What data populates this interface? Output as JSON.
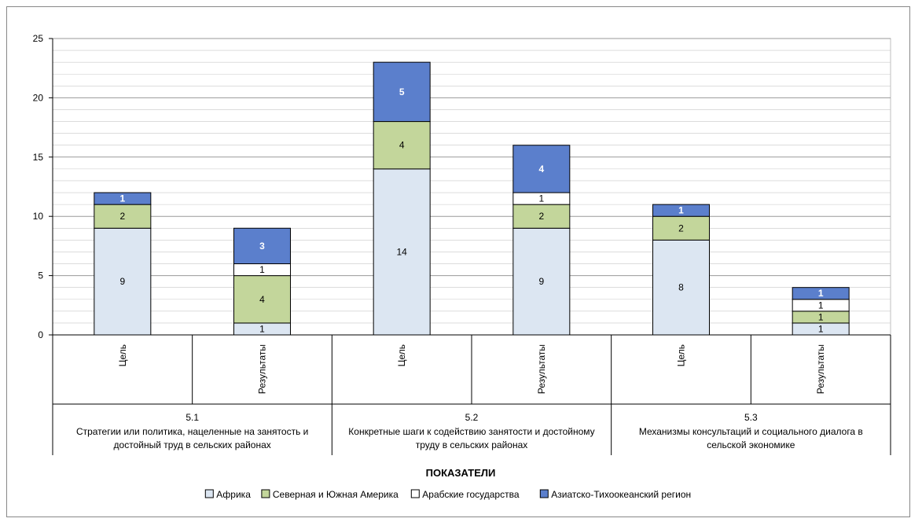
{
  "chart_data": {
    "type": "bar",
    "stacked": true,
    "xlabel": "ПОКАЗАТЕЛИ",
    "ylim": [
      0,
      25
    ],
    "yticks": [
      0,
      5,
      10,
      15,
      20,
      25
    ],
    "grid": true,
    "legend_position": "bottom",
    "categories": [
      "Цель",
      "Результаты",
      "Цель",
      "Результаты",
      "Цель",
      "Результаты"
    ],
    "groups": [
      {
        "code": "5.1",
        "title": "Стратегии или политика, нацеленные  на занятость и достойный труд в сельских районах"
      },
      {
        "code": "5.2",
        "title": "Конкретные  шаги к содействию занятости и достойному труду в сельских районах"
      },
      {
        "code": "5.3",
        "title": "Механизмы консультаций и социального диалога в сельской экономике"
      }
    ],
    "series": [
      {
        "name": "Африка",
        "color": "#dce6f2",
        "label_color": "#000000",
        "values": [
          9,
          1,
          14,
          9,
          8,
          1
        ]
      },
      {
        "name": "Северная и Южная Америка",
        "color": "#c3d69b",
        "label_color": "#000000",
        "values": [
          2,
          4,
          4,
          2,
          2,
          1
        ]
      },
      {
        "name": "Арабские государства",
        "color": "#ffffff",
        "label_color": "#000000",
        "values": [
          0,
          1,
          0,
          1,
          0,
          1
        ]
      },
      {
        "name": "Азиатско-Тихоокеанский регион",
        "color": "#5b7fcc",
        "label_color": "#ffffff",
        "values": [
          1,
          3,
          5,
          4,
          1,
          1
        ]
      }
    ]
  }
}
